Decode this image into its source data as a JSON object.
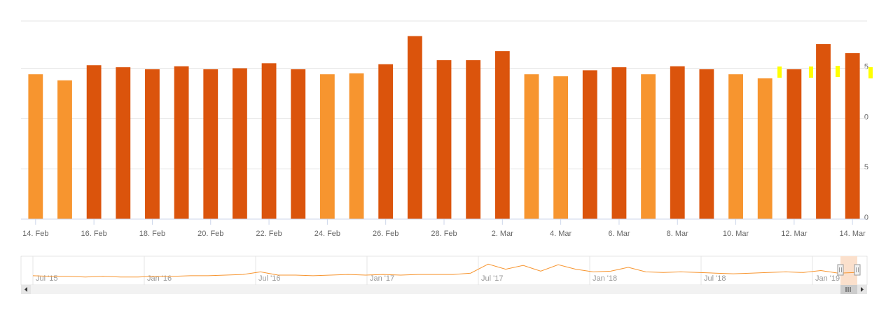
{
  "chart_data": {
    "type": "bar",
    "categories": [
      "14. Feb",
      null,
      "16. Feb",
      null,
      "18. Feb",
      null,
      "20. Feb",
      null,
      "22. Feb",
      null,
      "24. Feb",
      null,
      "26. Feb",
      null,
      "28. Feb",
      null,
      "2. Mar",
      null,
      "4. Mar",
      null,
      "6. Mar",
      null,
      "8. Mar",
      null,
      "10. Mar",
      null,
      "12. Mar",
      null,
      "14. Mar"
    ],
    "values": [
      14.4,
      13.8,
      15.3,
      15.1,
      14.9,
      15.2,
      14.9,
      15.0,
      15.5,
      14.9,
      14.4,
      14.5,
      15.4,
      18.2,
      15.8,
      15.8,
      16.7,
      14.4,
      14.2,
      14.8,
      15.1,
      14.4,
      15.2,
      14.9,
      14.4,
      14.0,
      14.9,
      17.4,
      16.5
    ],
    "colors": [
      "#f7952f",
      "#f7952f",
      "#db540c",
      "#db540c",
      "#db540c",
      "#db540c",
      "#db540c",
      "#db540c",
      "#db540c",
      "#db540c",
      "#f7952f",
      "#f7952f",
      "#db540c",
      "#db540c",
      "#db540c",
      "#db540c",
      "#db540c",
      "#f7952f",
      "#f7952f",
      "#db540c",
      "#db540c",
      "#f7952f",
      "#db540c",
      "#db540c",
      "#f7952f",
      "#f7952f",
      "#db540c",
      "#db540c",
      "#db540c"
    ],
    "ylim": [
      0,
      19.7
    ],
    "yticks": [
      0,
      {
        "value": 5,
        "label": "5"
      },
      {
        "value": 10,
        "label": "0"
      },
      {
        "value": 15,
        "label": "5"
      }
    ],
    "grid": true,
    "navigator": {
      "type": "line",
      "color": "#f7952f",
      "ylim": [
        0,
        40
      ],
      "labels": [
        "Jul '15",
        "Jan '16",
        "Jul '16",
        "Jan '17",
        "Jul '17",
        "Jan '18",
        "Jul '18",
        "Jan '19"
      ],
      "values": [
        12,
        11,
        11,
        10,
        11,
        10,
        10,
        11,
        11,
        12,
        12,
        13,
        14,
        18,
        13,
        13,
        12,
        13,
        14,
        13,
        14,
        13,
        14,
        14,
        14,
        16,
        30,
        22,
        28,
        19,
        29,
        22,
        18,
        19,
        25,
        18,
        17,
        18,
        17,
        16,
        15,
        16,
        17,
        18,
        17,
        20,
        16,
        17
      ]
    }
  }
}
